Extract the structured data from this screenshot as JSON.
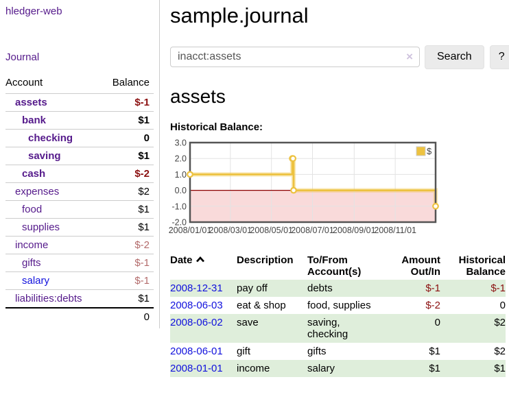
{
  "app": {
    "title": "hledger-web"
  },
  "colors": {
    "link_purple": "#551a8b",
    "link_blue": "#1111dd",
    "negative_red": "#8b1010",
    "negative_dim_red": "#b36b6b",
    "row_green": "#dfeedb",
    "series_gold": "#EDC240",
    "negative_region_pink": "#f9dada",
    "zero_line_dark_red": "#8b0000"
  },
  "sidebar": {
    "journal_link": "Journal",
    "table": {
      "account_header": "Account",
      "balance_header": "Balance",
      "accounts": [
        {
          "name": "assets",
          "balance": "$-1"
        },
        {
          "name": "bank",
          "balance": "$1"
        },
        {
          "name": "checking",
          "balance": "0"
        },
        {
          "name": "saving",
          "balance": "$1"
        },
        {
          "name": "cash",
          "balance": "$-2"
        },
        {
          "name": "expenses",
          "balance": "$2"
        },
        {
          "name": "food",
          "balance": "$1"
        },
        {
          "name": "supplies",
          "balance": "$1"
        },
        {
          "name": "income",
          "balance": "$-2"
        },
        {
          "name": "gifts",
          "balance": "$-1"
        },
        {
          "name": "salary",
          "balance": "$-1"
        },
        {
          "name": "liabilities:debts",
          "balance": "$1"
        }
      ],
      "total": "0"
    }
  },
  "main": {
    "title": "sample.journal",
    "search": {
      "query": "inacct:assets",
      "clear_icon": "×",
      "button_label": "Search",
      "help_label": "?"
    },
    "account_heading": "assets",
    "chart_label": "Historical Balance:",
    "register": {
      "headers": {
        "date": "Date",
        "description": "Description",
        "tofrom": "To/From\nAccount(s)",
        "amount": "Amount\nOut/In",
        "balance": "Historical\nBalance"
      },
      "rows": [
        {
          "date": "2008-12-31",
          "description": "pay off",
          "accounts": "debts",
          "amount": "$-1",
          "balance": "$-1"
        },
        {
          "date": "2008-06-03",
          "description": "eat & shop",
          "accounts": "food, supplies",
          "amount": "$-2",
          "balance": "0"
        },
        {
          "date": "2008-06-02",
          "description": "save",
          "accounts": "saving,\nchecking",
          "amount": "0",
          "balance": "$2"
        },
        {
          "date": "2008-06-01",
          "description": "gift",
          "accounts": "gifts",
          "amount": "$1",
          "balance": "$2"
        },
        {
          "date": "2008-01-01",
          "description": "income",
          "accounts": "salary",
          "amount": "$1",
          "balance": "$1"
        }
      ]
    }
  },
  "chart_data": {
    "type": "line",
    "title": "Historical Balance:",
    "steps": true,
    "x_range": [
      "2008-01-01",
      "2008-12-31"
    ],
    "ylim": [
      -2,
      3
    ],
    "y_ticks": [
      "3.0",
      "2.0",
      "1.0",
      "0.0",
      "-1.0",
      "-2.0"
    ],
    "x_ticks": [
      {
        "date": "2008-01-01",
        "label": "2008/01/01"
      },
      {
        "date": "2008-03-01",
        "label": "2008/03/01"
      },
      {
        "date": "2008-05-01",
        "label": "2008/05/01"
      },
      {
        "date": "2008-07-01",
        "label": "2008/07/01"
      },
      {
        "date": "2008-09-01",
        "label": "2008/09/01"
      },
      {
        "date": "2008-11-01",
        "label": "2008/11/01"
      }
    ],
    "series": [
      {
        "name": "$",
        "color": "#EDC240",
        "points": [
          [
            "2008-01-01",
            1
          ],
          [
            "2008-06-01",
            2
          ],
          [
            "2008-06-02",
            2
          ],
          [
            "2008-06-03",
            0
          ],
          [
            "2008-12-31",
            -1
          ]
        ]
      }
    ],
    "grid": true,
    "legend_position": "top-right",
    "negative_region_color": "#f9dada",
    "zero_line_color": "#8b0000"
  }
}
